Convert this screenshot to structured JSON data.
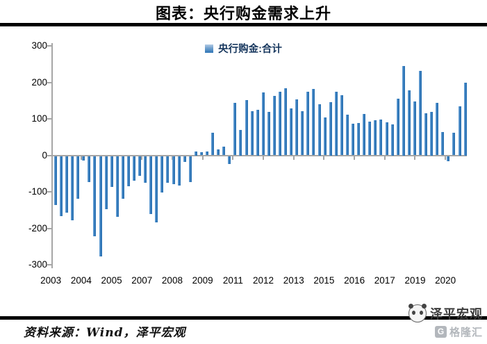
{
  "title": "图表：央行购金需求上升",
  "legend": {
    "label": "央行购金:合计",
    "swatch_color": "#2e75b6"
  },
  "source_line": "资料来源：Wind，泽平宏观",
  "watermark": {
    "brand": "泽平宏观",
    "platform": "格隆汇",
    "badge_letter": "G"
  },
  "chart_data": {
    "type": "bar",
    "title": "图表：央行购金需求上升",
    "series_name": "央行购金:合计",
    "unit_hint": "tonnes (per quarter)",
    "grid": false,
    "legend_position": "top-center",
    "bar_color": "#2e75b6",
    "axis_color": "#a6a6a6",
    "ylim": [
      -300,
      300
    ],
    "y_ticks": [
      300,
      200,
      100,
      0,
      -100,
      -200,
      -300
    ],
    "x_axis_labels": [
      "2003",
      "2004",
      "2005",
      "2007",
      "2008",
      "2009",
      "2011",
      "2012",
      "2013",
      "2015",
      "2016",
      "2017",
      "2019",
      "2020"
    ],
    "x": [
      "2003Q1",
      "2003Q2",
      "2003Q3",
      "2003Q4",
      "2004Q1",
      "2004Q2",
      "2004Q3",
      "2004Q4",
      "2005Q1",
      "2005Q2",
      "2005Q3",
      "2005Q4",
      "2006Q1",
      "2006Q2",
      "2006Q3",
      "2006Q4",
      "2007Q1",
      "2007Q2",
      "2007Q3",
      "2007Q4",
      "2008Q1",
      "2008Q2",
      "2008Q3",
      "2008Q4",
      "2009Q1",
      "2009Q2",
      "2009Q3",
      "2009Q4",
      "2010Q1",
      "2010Q2",
      "2010Q3",
      "2010Q4",
      "2011Q1",
      "2011Q2",
      "2011Q3",
      "2011Q4",
      "2012Q1",
      "2012Q2",
      "2012Q3",
      "2012Q4",
      "2013Q1",
      "2013Q2",
      "2013Q3",
      "2013Q4",
      "2014Q1",
      "2014Q2",
      "2014Q3",
      "2014Q4",
      "2015Q1",
      "2015Q2",
      "2015Q3",
      "2015Q4",
      "2016Q1",
      "2016Q2",
      "2016Q3",
      "2016Q4",
      "2017Q1",
      "2017Q2",
      "2017Q3",
      "2017Q4",
      "2018Q1",
      "2018Q2",
      "2018Q3",
      "2018Q4",
      "2019Q1",
      "2019Q2",
      "2019Q3",
      "2019Q4",
      "2020Q1",
      "2020Q2",
      "2020Q3",
      "2020Q4",
      "2021Q1",
      "2021Q2"
    ],
    "values": [
      -135,
      -164,
      -156,
      -177,
      -118,
      -12,
      -71,
      -220,
      -275,
      -145,
      -85,
      -167,
      -118,
      -83,
      -68,
      -55,
      -73,
      -159,
      -181,
      -100,
      -74,
      -77,
      -81,
      -16,
      -72,
      10,
      9,
      11,
      61,
      16,
      24,
      -22,
      143,
      70,
      151,
      121,
      125,
      173,
      120,
      162,
      175,
      183,
      129,
      154,
      121,
      174,
      181,
      140,
      104,
      145,
      175,
      164,
      111,
      86,
      89,
      113,
      92,
      97,
      99,
      91,
      85,
      156,
      245,
      179,
      148,
      231,
      115,
      120,
      143,
      64,
      -14,
      62,
      135,
      200
    ]
  }
}
